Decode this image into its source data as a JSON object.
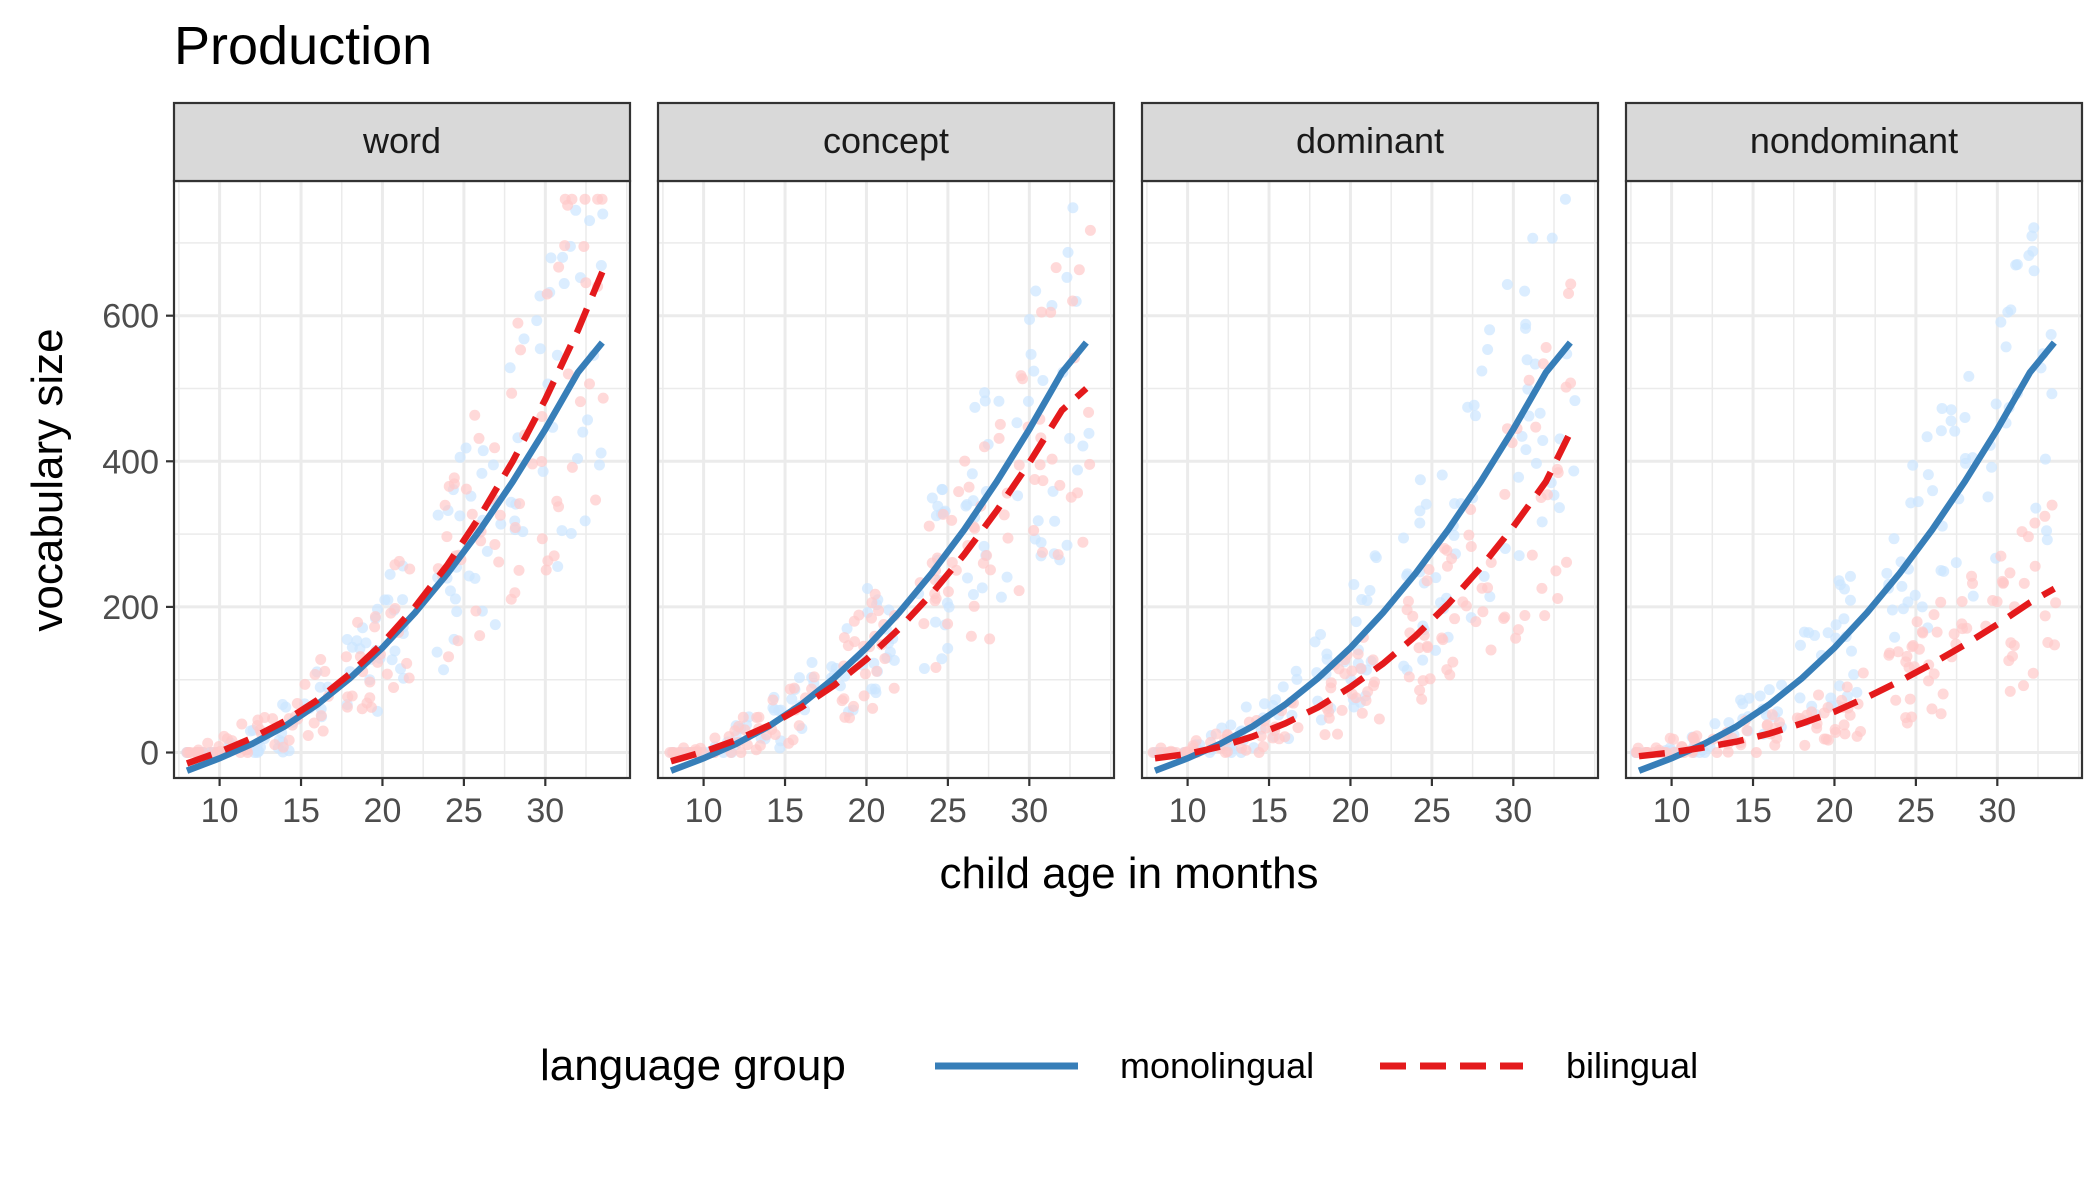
{
  "chart_data": {
    "type": "scatter",
    "title": "Production",
    "xlabel": "child age in months",
    "ylabel": "vocabulary size",
    "xlim": [
      7.2,
      35.2
    ],
    "ylim": [
      -35,
      785
    ],
    "x_ticks": [
      10,
      15,
      20,
      25,
      30
    ],
    "y_ticks": [
      0,
      200,
      400,
      600
    ],
    "grid": true,
    "legend": {
      "title": "language group",
      "position": "bottom",
      "entries": [
        {
          "label": "monolingual",
          "color": "#377EB8",
          "dash": "solid"
        },
        {
          "label": "bilingual",
          "color": "#E41A1C",
          "dash": "dashed"
        }
      ]
    },
    "colors": {
      "monolingual_line": "#377EB8",
      "bilingual_line": "#E41A1C",
      "monolingual_points": "#CCE6FF",
      "bilingual_points": "#FFC9C9",
      "strip_fill": "#D9D9D9",
      "grid": "#EBEBEB",
      "panel_border": "#333333"
    },
    "panels": [
      {
        "label": "word",
        "series": [
          {
            "name": "monolingual",
            "style": "solid",
            "x": [
              8,
              10,
              12,
              14,
              16,
              18,
              20,
              22,
              24,
              26,
              28,
              30,
              32,
              33.5
            ],
            "y": [
              -25,
              -8,
              12,
              36,
              66,
              102,
              144,
              192,
              246,
              306,
              372,
              444,
              522,
              563
            ]
          },
          {
            "name": "bilingual",
            "style": "dashed",
            "x": [
              8,
              10,
              12,
              14,
              16,
              18,
              20,
              22,
              24,
              26,
              28,
              30,
              32,
              33.5
            ],
            "y": [
              -15,
              1,
              20,
              43,
              72,
              108,
              150,
              200,
              258,
              325,
              400,
              485,
              580,
              660
            ]
          }
        ]
      },
      {
        "label": "concept",
        "series": [
          {
            "name": "monolingual",
            "style": "solid",
            "x": [
              8,
              10,
              12,
              14,
              16,
              18,
              20,
              22,
              24,
              26,
              28,
              30,
              32,
              33.5
            ],
            "y": [
              -25,
              -8,
              12,
              36,
              66,
              102,
              144,
              192,
              246,
              306,
              372,
              444,
              522,
              563
            ]
          },
          {
            "name": "bilingual",
            "style": "dashed",
            "x": [
              8,
              10,
              12,
              14,
              16,
              18,
              20,
              22,
              24,
              26,
              28,
              30,
              32,
              33.5
            ],
            "y": [
              -12,
              1,
              17,
              37,
              62,
              92,
              128,
              170,
              218,
              272,
              332,
              398,
              470,
              500
            ]
          }
        ]
      },
      {
        "label": "dominant",
        "series": [
          {
            "name": "monolingual",
            "style": "solid",
            "x": [
              8,
              10,
              12,
              14,
              16,
              18,
              20,
              22,
              24,
              26,
              28,
              30,
              32,
              33.5
            ],
            "y": [
              -25,
              -8,
              12,
              36,
              66,
              102,
              144,
              192,
              246,
              306,
              372,
              444,
              522,
              563
            ]
          },
          {
            "name": "bilingual",
            "style": "dashed",
            "x": [
              8,
              10,
              12,
              14,
              16,
              18,
              20,
              22,
              24,
              26,
              28,
              30,
              32,
              33.5
            ],
            "y": [
              -8,
              -2,
              8,
              22,
              40,
              62,
              90,
              122,
              160,
              204,
              254,
              310,
              372,
              440
            ]
          }
        ]
      },
      {
        "label": "nondominant",
        "series": [
          {
            "name": "monolingual",
            "style": "solid",
            "x": [
              8,
              10,
              12,
              14,
              16,
              18,
              20,
              22,
              24,
              26,
              28,
              30,
              32,
              33.5
            ],
            "y": [
              -25,
              -8,
              12,
              36,
              66,
              102,
              144,
              192,
              246,
              306,
              372,
              444,
              522,
              563
            ]
          },
          {
            "name": "bilingual",
            "style": "dashed",
            "x": [
              8,
              10,
              12,
              14,
              16,
              18,
              20,
              22,
              24,
              26,
              28,
              30,
              32,
              33.5
            ],
            "y": [
              -5,
              0,
              7,
              15,
              26,
              40,
              56,
              76,
              98,
              122,
              148,
              176,
              206,
              225
            ]
          }
        ]
      }
    ]
  }
}
